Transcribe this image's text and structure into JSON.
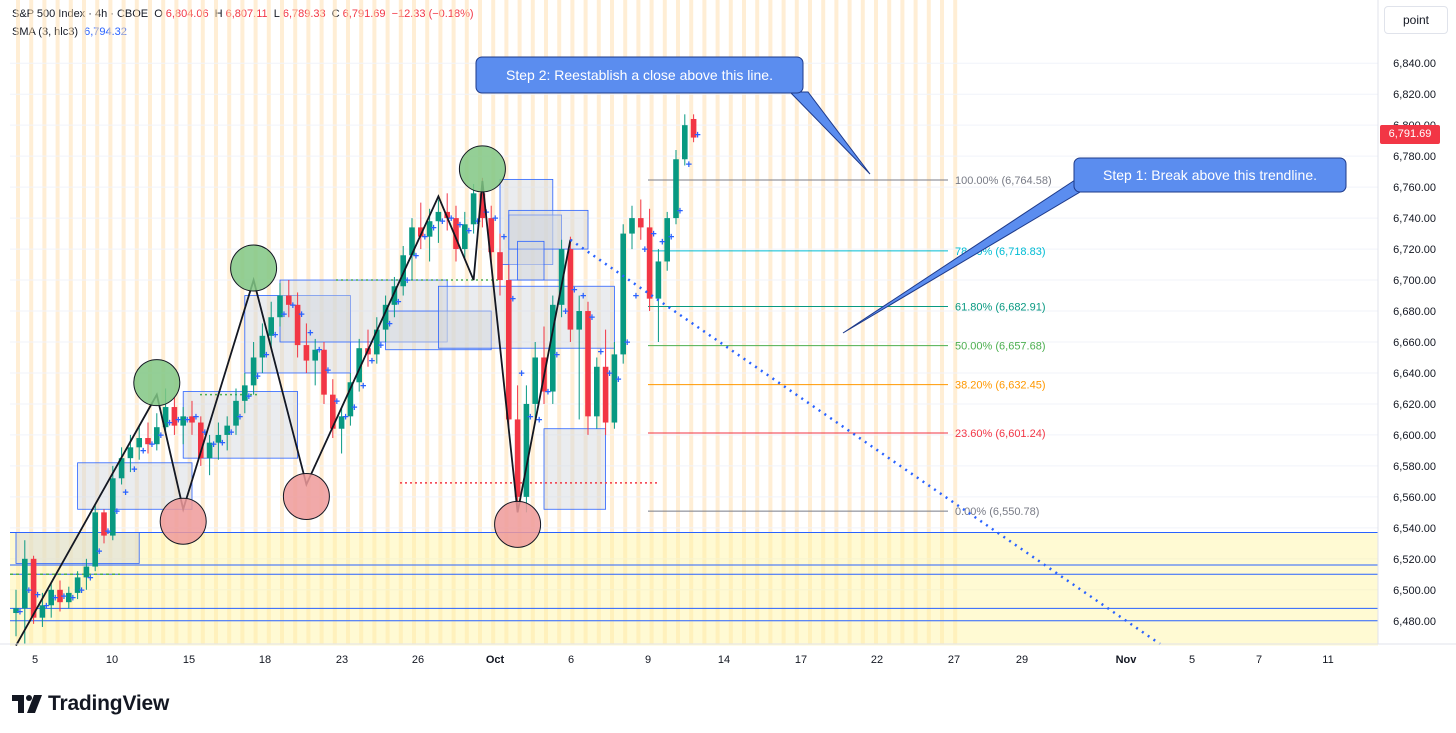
{
  "header": {
    "symbol": "S&P 500 Index · 4h · CBOE",
    "open_label": "O",
    "open": "6,804.06",
    "high_label": "H",
    "high": "6,807.11",
    "low_label": "L",
    "low": "6,789.33",
    "close_label": "C",
    "close": "6,791.69",
    "change": "−12.33 (−0.18%)",
    "sma_label": "SMA (3, hlc3)",
    "sma_value": "6,794.32"
  },
  "toolbar": {
    "unit_button": "point"
  },
  "last_price_tag": "6,791.69",
  "brand": {
    "name": "TradingView"
  },
  "colors": {
    "up": "#089981",
    "down": "#f23645",
    "sma": "#2962ff",
    "session_stripe": "#ffe0b2",
    "zone": "#fff59d"
  },
  "annotations": {
    "step1": "Step 1: Break above this trendline.",
    "step2": "Step 2: Reestablish a close above this line."
  },
  "chart_data": {
    "type": "candlestick",
    "title": "S&P 500 Index · 4h · CBOE",
    "ylim": [
      6465,
      6855
    ],
    "y_ticks": [
      6480,
      6500,
      6520,
      6540,
      6560,
      6580,
      6600,
      6620,
      6640,
      6660,
      6680,
      6700,
      6720,
      6740,
      6760,
      6780,
      6800,
      6820,
      6840
    ],
    "x_tick_labels": [
      "5",
      "10",
      "15",
      "18",
      "23",
      "26",
      "Oct",
      "6",
      "9",
      "14",
      "17",
      "22",
      "27",
      "29",
      "Nov",
      "5",
      "7",
      "11"
    ],
    "ohlc": [
      [
        6485,
        6500,
        6470,
        6488
      ],
      [
        6488,
        6532,
        6465,
        6520
      ],
      [
        6520,
        6522,
        6478,
        6482
      ],
      [
        6482,
        6498,
        6476,
        6490
      ],
      [
        6490,
        6505,
        6482,
        6500
      ],
      [
        6500,
        6506,
        6486,
        6492
      ],
      [
        6492,
        6502,
        6488,
        6498
      ],
      [
        6498,
        6512,
        6494,
        6508
      ],
      [
        6508,
        6520,
        6500,
        6515
      ],
      [
        6515,
        6555,
        6512,
        6550
      ],
      [
        6550,
        6552,
        6530,
        6535
      ],
      [
        6535,
        6580,
        6532,
        6572
      ],
      [
        6572,
        6592,
        6568,
        6585
      ],
      [
        6585,
        6600,
        6576,
        6592
      ],
      [
        6592,
        6606,
        6584,
        6598
      ],
      [
        6598,
        6608,
        6588,
        6594
      ],
      [
        6594,
        6614,
        6590,
        6605
      ],
      [
        6605,
        6630,
        6600,
        6618
      ],
      [
        6618,
        6624,
        6600,
        6606
      ],
      [
        6606,
        6618,
        6594,
        6612
      ],
      [
        6612,
        6622,
        6600,
        6608
      ],
      [
        6608,
        6612,
        6580,
        6585
      ],
      [
        6585,
        6600,
        6574,
        6595
      ],
      [
        6595,
        6608,
        6584,
        6600
      ],
      [
        6600,
        6612,
        6590,
        6606
      ],
      [
        6606,
        6630,
        6600,
        6622
      ],
      [
        6622,
        6640,
        6614,
        6632
      ],
      [
        6632,
        6660,
        6626,
        6650
      ],
      [
        6650,
        6672,
        6640,
        6664
      ],
      [
        6664,
        6686,
        6656,
        6676
      ],
      [
        6676,
        6698,
        6670,
        6690
      ],
      [
        6690,
        6700,
        6676,
        6684
      ],
      [
        6684,
        6692,
        6650,
        6658
      ],
      [
        6658,
        6672,
        6640,
        6648
      ],
      [
        6648,
        6662,
        6632,
        6655
      ],
      [
        6655,
        6660,
        6620,
        6626
      ],
      [
        6626,
        6636,
        6598,
        6604
      ],
      [
        6604,
        6618,
        6588,
        6612
      ],
      [
        6612,
        6640,
        6606,
        6634
      ],
      [
        6634,
        6662,
        6628,
        6656
      ],
      [
        6656,
        6668,
        6644,
        6652
      ],
      [
        6652,
        6676,
        6646,
        6668
      ],
      [
        6668,
        6690,
        6660,
        6684
      ],
      [
        6684,
        6702,
        6676,
        6696
      ],
      [
        6696,
        6722,
        6690,
        6716
      ],
      [
        6716,
        6740,
        6700,
        6734
      ],
      [
        6734,
        6750,
        6720,
        6728
      ],
      [
        6728,
        6746,
        6712,
        6738
      ],
      [
        6738,
        6752,
        6724,
        6744
      ],
      [
        6744,
        6756,
        6732,
        6740
      ],
      [
        6740,
        6748,
        6712,
        6720
      ],
      [
        6720,
        6744,
        6714,
        6736
      ],
      [
        6736,
        6762,
        6730,
        6756
      ],
      [
        6756,
        6766,
        6734,
        6740
      ],
      [
        6740,
        6748,
        6710,
        6718
      ],
      [
        6718,
        6730,
        6690,
        6700
      ],
      [
        6700,
        6710,
        6604,
        6610
      ],
      [
        6610,
        6632,
        6552,
        6560
      ],
      [
        6560,
        6632,
        6550,
        6620
      ],
      [
        6620,
        6660,
        6610,
        6650
      ],
      [
        6650,
        6670,
        6620,
        6628
      ],
      [
        6628,
        6690,
        6620,
        6684
      ],
      [
        6684,
        6726,
        6676,
        6720
      ],
      [
        6720,
        6728,
        6660,
        6668
      ],
      [
        6668,
        6690,
        6610,
        6680
      ],
      [
        6680,
        6686,
        6600,
        6612
      ],
      [
        6612,
        6650,
        6604,
        6644
      ],
      [
        6644,
        6668,
        6600,
        6608
      ],
      [
        6608,
        6660,
        6604,
        6652
      ],
      [
        6652,
        6736,
        6646,
        6730
      ],
      [
        6730,
        6748,
        6720,
        6740
      ],
      [
        6740,
        6752,
        6726,
        6734
      ],
      [
        6734,
        6746,
        6680,
        6688
      ],
      [
        6688,
        6720,
        6660,
        6712
      ],
      [
        6712,
        6744,
        6706,
        6740
      ],
      [
        6740,
        6784,
        6736,
        6778
      ],
      [
        6778,
        6807,
        6774,
        6800
      ],
      [
        6804,
        6807,
        6789,
        6792
      ]
    ],
    "sma_3_hlc3": [
      6486,
      6500,
      6497,
      6490,
      6495,
      6496,
      6495,
      6500,
      6508,
      6525,
      6538,
      6551,
      6563,
      6578,
      6590,
      6594,
      6600,
      6608,
      6610,
      6610,
      6612,
      6602,
      6594,
      6595,
      6602,
      6612,
      6625,
      6638,
      6652,
      6665,
      6678,
      6684,
      6678,
      6666,
      6655,
      6642,
      6622,
      6612,
      6618,
      6632,
      6648,
      6658,
      6672,
      6686,
      6700,
      6716,
      6728,
      6734,
      6738,
      6740,
      6736,
      6732,
      6738,
      6744,
      6740,
      6728,
      6688,
      6640,
      6612,
      6610,
      6628,
      6652,
      6680,
      6694,
      6690,
      6676,
      6654,
      6640,
      6636,
      6660,
      6690,
      6720,
      6730,
      6725,
      6728,
      6745,
      6775,
      6794
    ],
    "fibonacci": [
      {
        "label": "100.00% (6,764.58)",
        "value": 6764.58,
        "color": "#787b86"
      },
      {
        "label": "78.60% (6,718.83)",
        "value": 6718.83,
        "color": "#00bcd4"
      },
      {
        "label": "61.80% (6,682.91)",
        "value": 6682.91,
        "color": "#089981"
      },
      {
        "label": "50.00% (6,657.68)",
        "value": 6657.68,
        "color": "#4caf50"
      },
      {
        "label": "38.20% (6,632.45)",
        "value": 6632.45,
        "color": "#ff9800"
      },
      {
        "label": "23.60% (6,601.24)",
        "value": 6601.24,
        "color": "#f23645"
      },
      {
        "label": "0.00% (6,550.78)",
        "value": 6550.78,
        "color": "#787b86"
      }
    ],
    "support_zone": [
      6464,
      6537
    ],
    "zone_lines": [
      6537,
      6516,
      6510,
      6488,
      6480
    ],
    "swing_points": [
      {
        "kind": "high",
        "index": 16,
        "value": 6626
      },
      {
        "kind": "low",
        "index": 19,
        "value": 6552
      },
      {
        "kind": "high",
        "index": 27,
        "value": 6700
      },
      {
        "kind": "low",
        "index": 33,
        "value": 6568
      },
      {
        "kind": "high",
        "index": 53,
        "value": 6764
      },
      {
        "kind": "low",
        "index": 57,
        "value": 6550
      }
    ],
    "last_price": 6791.69
  }
}
